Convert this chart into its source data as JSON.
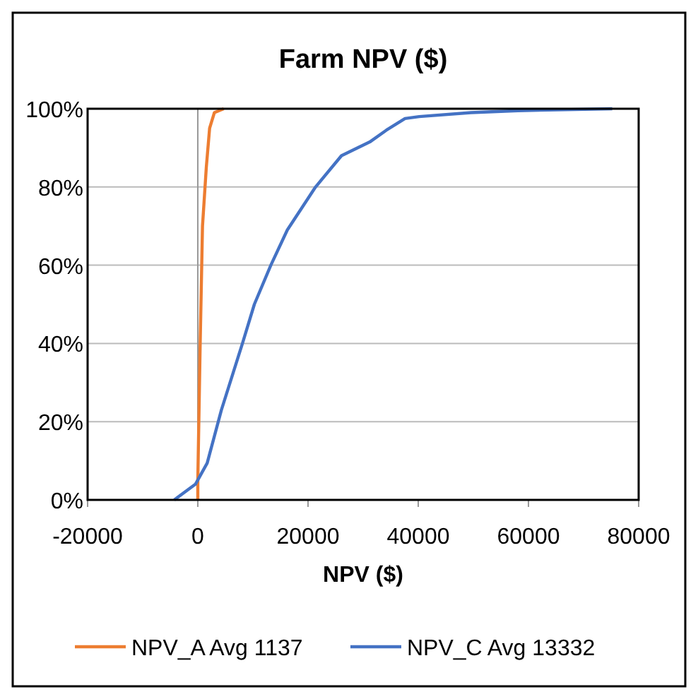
{
  "chart_data": {
    "type": "line",
    "title": "Farm NPV ($)",
    "xlabel": "NPV ($)",
    "xlim": [
      -20000,
      80000
    ],
    "xticks": [
      -20000,
      0,
      20000,
      40000,
      60000,
      80000
    ],
    "ylim": [
      0,
      100
    ],
    "yticks": [
      {
        "value": 0,
        "label": "0%"
      },
      {
        "value": 20,
        "label": "20%"
      },
      {
        "value": 40,
        "label": "40%"
      },
      {
        "value": 60,
        "label": "60%"
      },
      {
        "value": 80,
        "label": "80%"
      },
      {
        "value": 100,
        "label": "100%"
      }
    ],
    "grid": "y",
    "legend": "bottom",
    "line_style": "solid",
    "series": [
      {
        "name": "NPV_A Avg 1137",
        "color": "#ed7d31",
        "x": [
          0,
          0,
          430,
          850,
          1540,
          2140,
          3000,
          4700
        ],
        "values": [
          0,
          5,
          40,
          70,
          85,
          95,
          99,
          100
        ]
      },
      {
        "name": "NPV_C Avg 13332",
        "color": "#4472c4",
        "x": [
          -4280,
          -430,
          1700,
          4280,
          8100,
          10260,
          13250,
          16240,
          21370,
          26070,
          31200,
          34200,
          37600,
          40170,
          49570,
          58100,
          75200
        ],
        "values": [
          0,
          4,
          9.4,
          23,
          40,
          50,
          60,
          69,
          80,
          88,
          91.5,
          94.5,
          97.5,
          98,
          99,
          99.5,
          100
        ]
      }
    ]
  }
}
